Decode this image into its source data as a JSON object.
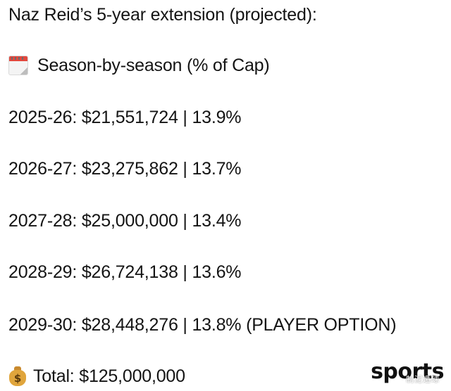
{
  "title": "Naz Reid’s 5-year extension (projected):",
  "section": {
    "icon": "calendar-icon",
    "label": "Season-by-season (% of Cap)"
  },
  "seasons": [
    {
      "text": "2025-26: $21,551,724 | 13.9%"
    },
    {
      "text": "2026-27: $23,275,862 | 13.7%"
    },
    {
      "text": "2027-28: $25,000,000 | 13.4%"
    },
    {
      "text": "2028-29: $26,724,138 | 13.6%"
    },
    {
      "text": "2029-30: $28,448,276 | 13.8% (PLAYER OPTION)"
    }
  ],
  "total": {
    "icon": "money-bag-icon",
    "text": "Total: $125,000,000"
  },
  "watermark": {
    "brand": "sports",
    "sub": "制泥遁球"
  }
}
